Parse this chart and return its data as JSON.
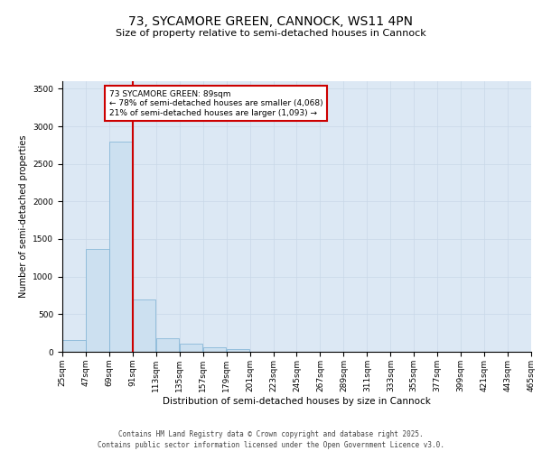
{
  "title_line1": "73, SYCAMORE GREEN, CANNOCK, WS11 4PN",
  "title_line2": "Size of property relative to semi-detached houses in Cannock",
  "xlabel": "Distribution of semi-detached houses by size in Cannock",
  "ylabel": "Number of semi-detached properties",
  "footer_line1": "Contains HM Land Registry data © Crown copyright and database right 2025.",
  "footer_line2": "Contains public sector information licensed under the Open Government Licence v3.0.",
  "annotation_text": "73 SYCAMORE GREEN: 89sqm\n← 78% of semi-detached houses are smaller (4,068)\n21% of semi-detached houses are larger (1,093) →",
  "bar_color": "#cce0f0",
  "bar_edge_color": "#7ab0d4",
  "vline_color": "#cc0000",
  "grid_color": "#c8d8e8",
  "plot_bg_color": "#dce8f4",
  "bins": [
    25,
    47,
    69,
    91,
    113,
    135,
    157,
    179,
    201,
    223,
    245,
    267,
    289,
    311,
    333,
    355,
    377,
    399,
    421,
    443,
    465
  ],
  "bin_labels": [
    "25sqm",
    "47sqm",
    "69sqm",
    "91sqm",
    "113sqm",
    "135sqm",
    "157sqm",
    "179sqm",
    "201sqm",
    "223sqm",
    "245sqm",
    "267sqm",
    "289sqm",
    "311sqm",
    "333sqm",
    "355sqm",
    "377sqm",
    "399sqm",
    "421sqm",
    "443sqm",
    "465sqm"
  ],
  "values": [
    155,
    1370,
    2800,
    700,
    175,
    105,
    55,
    35,
    0,
    0,
    0,
    0,
    0,
    0,
    0,
    0,
    0,
    0,
    0,
    0
  ],
  "ylim": [
    0,
    3600
  ],
  "yticks": [
    0,
    500,
    1000,
    1500,
    2000,
    2500,
    3000,
    3500
  ],
  "vline_x": 91,
  "title1_fontsize": 10,
  "title2_fontsize": 8,
  "ylabel_fontsize": 7,
  "xlabel_fontsize": 7.5,
  "tick_fontsize": 6.5,
  "annot_fontsize": 6.5,
  "footer_fontsize": 5.5
}
